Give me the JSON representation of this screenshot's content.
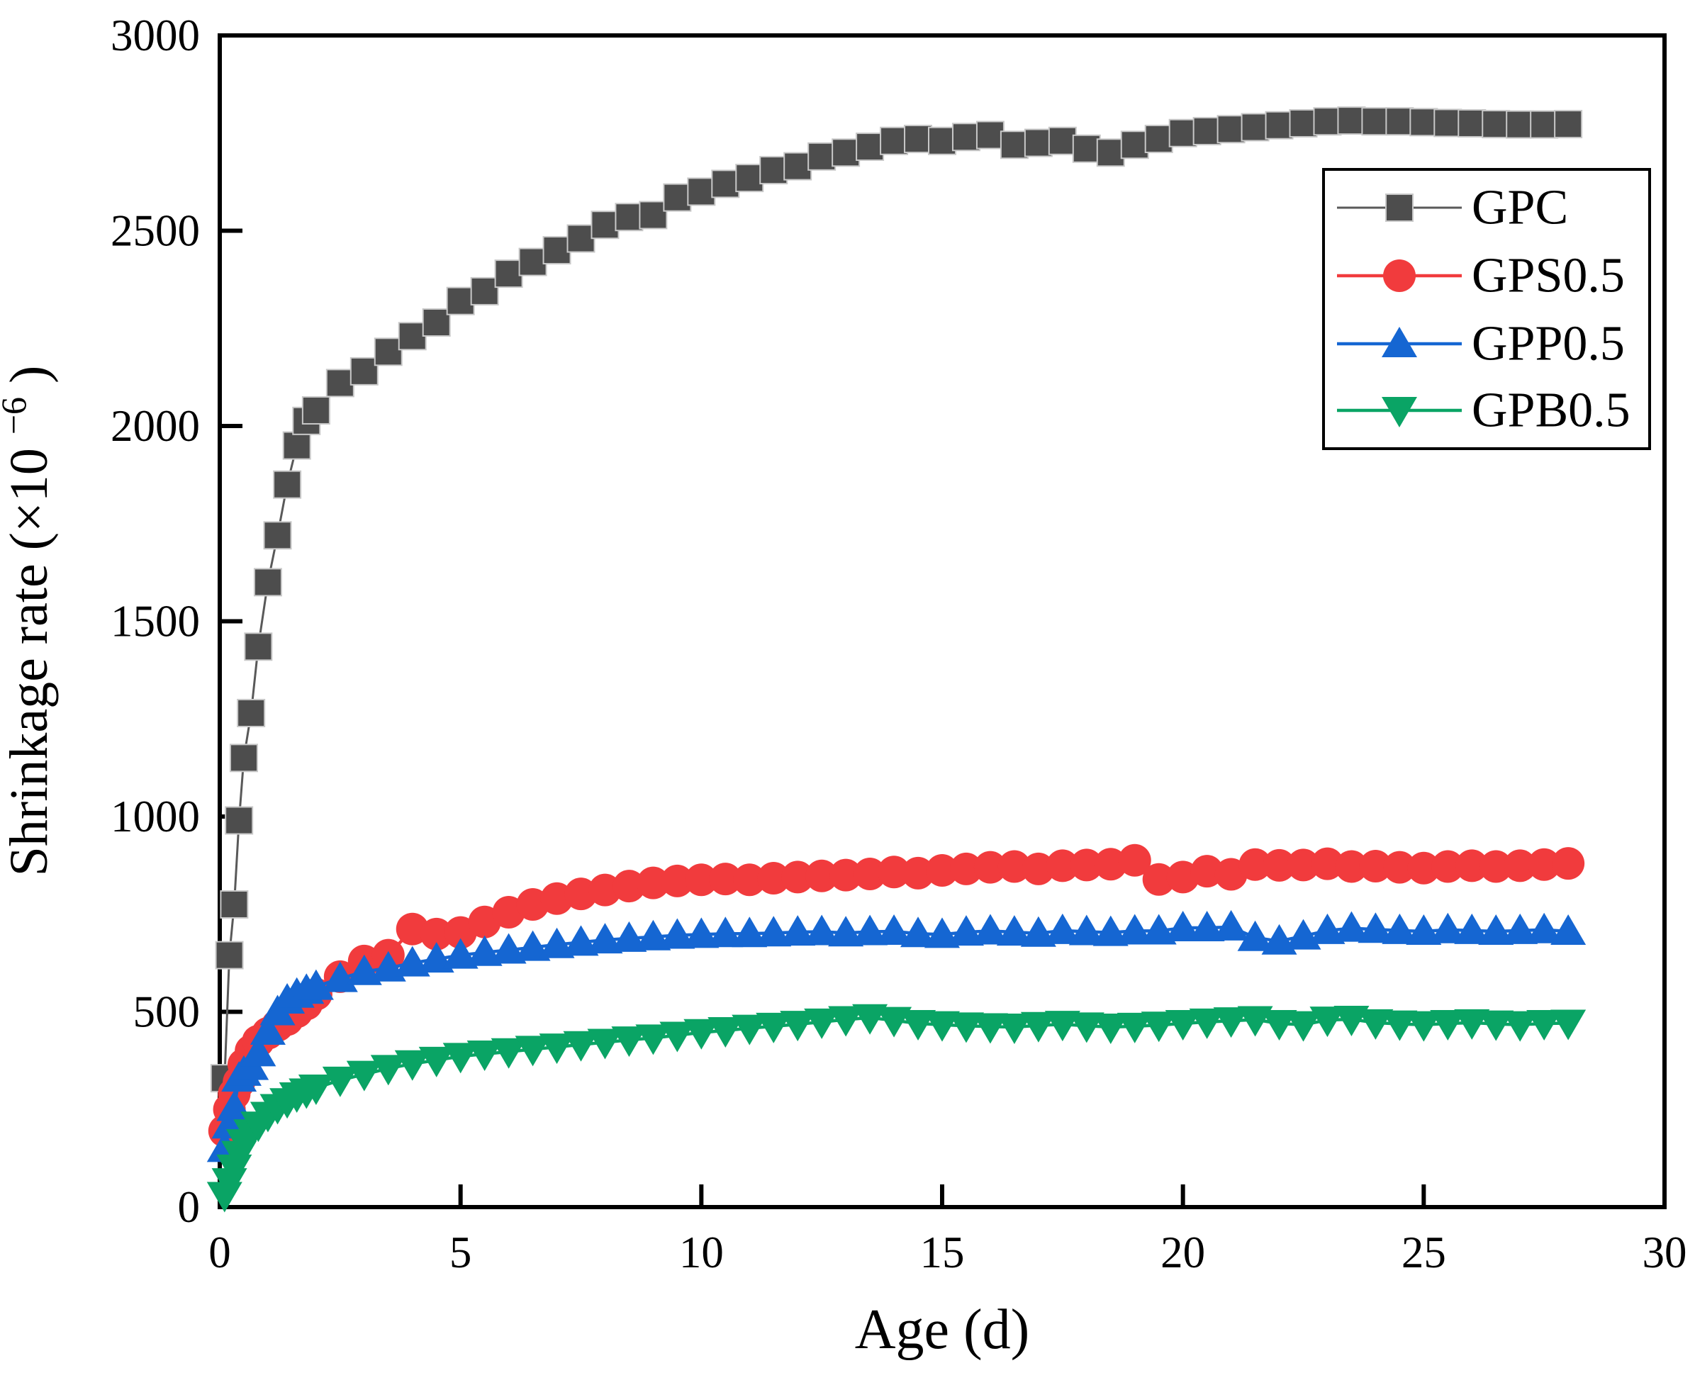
{
  "figure": {
    "background": "#ffffff",
    "frame_color": "#000000",
    "ylabel_prefix": "Shrinkage rate (×10",
    "ylabel_sup": "−6",
    "ylabel_suffix": ")"
  },
  "chart_data": {
    "type": "line",
    "title": "",
    "xlabel": "Age (d)",
    "ylabel": "Shrinkage rate (×10⁻⁶)",
    "xlim": [
      0,
      30
    ],
    "ylim": [
      0,
      3000
    ],
    "xticks": [
      0,
      5,
      10,
      15,
      20,
      25,
      30
    ],
    "yticks": [
      0,
      500,
      1000,
      1500,
      2000,
      2500,
      3000
    ],
    "grid": false,
    "legend_position": "upper right",
    "x": [
      0.1,
      0.2,
      0.3,
      0.4,
      0.5,
      0.65,
      0.8,
      1,
      1.2,
      1.4,
      1.6,
      1.8,
      2,
      2.5,
      3,
      3.5,
      4,
      4.5,
      5,
      5.5,
      6,
      6.5,
      7,
      7.5,
      8,
      8.5,
      9,
      9.5,
      10,
      10.5,
      11,
      11.5,
      12,
      12.5,
      13,
      13.5,
      14,
      14.5,
      15,
      15.5,
      16,
      16.5,
      17,
      17.5,
      18,
      18.5,
      19,
      19.5,
      20,
      20.5,
      21,
      21.5,
      22,
      22.5,
      23,
      23.5,
      24,
      24.5,
      25,
      25.5,
      26,
      26.5,
      27,
      27.5,
      28
    ],
    "series": [
      {
        "name": "GPC",
        "marker": "square",
        "marker_color": "#4d4d4d",
        "marker_edge": "#c8c8c8",
        "line_color": "#595959",
        "line_width": 3,
        "values": [
          330,
          645,
          775,
          990,
          1150,
          1265,
          1435,
          1600,
          1720,
          1850,
          1950,
          2013,
          2040,
          2110,
          2140,
          2190,
          2230,
          2265,
          2320,
          2345,
          2390,
          2420,
          2450,
          2480,
          2515,
          2535,
          2540,
          2585,
          2600,
          2620,
          2635,
          2655,
          2665,
          2690,
          2700,
          2715,
          2730,
          2735,
          2730,
          2740,
          2745,
          2720,
          2725,
          2730,
          2710,
          2700,
          2720,
          2735,
          2750,
          2755,
          2760,
          2765,
          2770,
          2775,
          2780,
          2782,
          2780,
          2780,
          2778,
          2776,
          2775,
          2773,
          2772,
          2772,
          2773
        ]
      },
      {
        "name": "GPS0.5",
        "marker": "circle",
        "marker_color": "#f13b3d",
        "marker_edge": "none",
        "line_color": "#f13b3d",
        "line_width": 4.5,
        "values": [
          195,
          250,
          290,
          320,
          365,
          400,
          425,
          445,
          465,
          480,
          500,
          520,
          545,
          590,
          630,
          645,
          712,
          699,
          703,
          730,
          755,
          775,
          790,
          802,
          812,
          822,
          830,
          835,
          838,
          840,
          838,
          842,
          845,
          848,
          850,
          853,
          858,
          855,
          862,
          866,
          870,
          872,
          866,
          874,
          876,
          878,
          888,
          839,
          845,
          860,
          852,
          877,
          875,
          876,
          879,
          872,
          873,
          870,
          868,
          872,
          874,
          872,
          874,
          877,
          880
        ]
      },
      {
        "name": "GPP0.5",
        "marker": "triangle-up",
        "marker_color": "#1566d2",
        "marker_edge": "none",
        "line_color": "#1566d2",
        "line_width": 4.5,
        "values": [
          150,
          210,
          255,
          330,
          345,
          360,
          395,
          450,
          500,
          530,
          545,
          555,
          565,
          585,
          603,
          612,
          625,
          635,
          645,
          652,
          658,
          665,
          672,
          678,
          684,
          688,
          692,
          696,
          698,
          700,
          700,
          702,
          704,
          705,
          702,
          705,
          706,
          700,
          698,
          704,
          707,
          704,
          701,
          708,
          705,
          703,
          707,
          707,
          715,
          715,
          717,
          690,
          681,
          694,
          708,
          714,
          711,
          708,
          706,
          710,
          708,
          706,
          708,
          710,
          706
        ]
      },
      {
        "name": "GPB0.5",
        "marker": "triangle-down",
        "marker_color": "#0aa465",
        "marker_edge": "none",
        "line_color": "#0aa465",
        "line_width": 4.5,
        "values": [
          30,
          65,
          100,
          135,
          165,
          190,
          210,
          235,
          255,
          270,
          285,
          295,
          305,
          325,
          340,
          355,
          367,
          376,
          386,
          392,
          398,
          404,
          410,
          416,
          422,
          428,
          433,
          440,
          447,
          452,
          458,
          463,
          468,
          474,
          480,
          485,
          478,
          470,
          467,
          464,
          462,
          461,
          465,
          468,
          464,
          461,
          463,
          466,
          470,
          474,
          477,
          480,
          470,
          467,
          479,
          481,
          472,
          469,
          467,
          470,
          472,
          469,
          467,
          470,
          471
        ]
      }
    ]
  },
  "legend": {
    "entries": [
      {
        "label": "GPC"
      },
      {
        "label": "GPS0.5"
      },
      {
        "label": "GPP0.5"
      },
      {
        "label": "GPB0.5"
      }
    ]
  }
}
